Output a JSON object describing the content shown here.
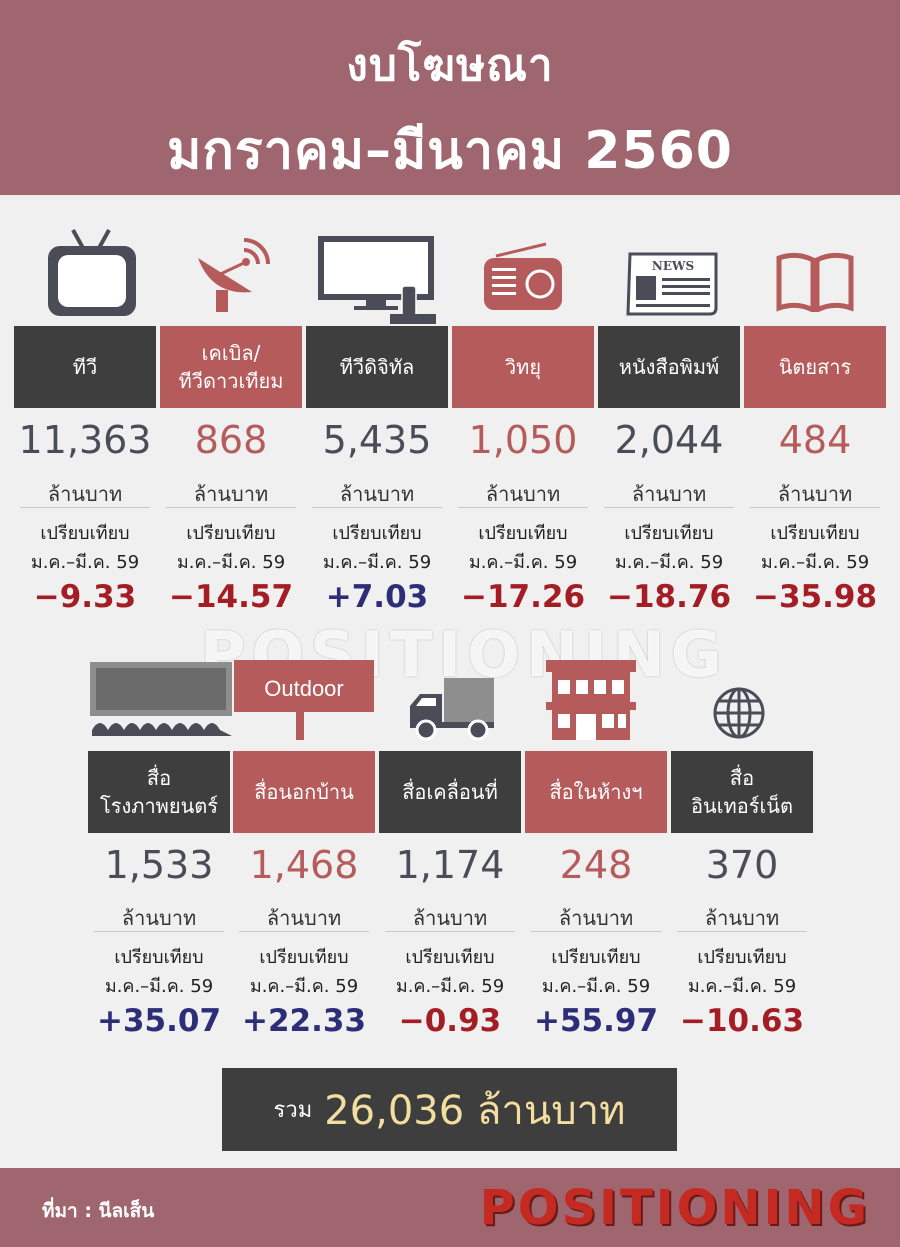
{
  "header": {
    "title_line1": "งบโฆษณา",
    "title_line2": "มกราคม–มีนาคม 2560"
  },
  "common": {
    "unit": "ล้านบาท",
    "compare_line1": "เปรียบเทียบ",
    "compare_line2": "ม.ค.–มี.ค. 59"
  },
  "row1": [
    {
      "label": "ทีวี",
      "value": "11,363",
      "change": "−9.33",
      "icon": "tv-icon"
    },
    {
      "label": "เคเบิล/\nทีวีดาวเทียม",
      "value": "868",
      "change": "−14.57",
      "icon": "satellite-dish-icon"
    },
    {
      "label": "ทีวีดิจิทัล",
      "value": "5,435",
      "change": "+7.03",
      "icon": "digital-tv-icon"
    },
    {
      "label": "วิทยุ",
      "value": "1,050",
      "change": "−17.26",
      "icon": "radio-icon"
    },
    {
      "label": "หนังสือพิมพ์",
      "value": "2,044",
      "change": "−18.76",
      "icon": "newspaper-icon"
    },
    {
      "label": "นิตยสาร",
      "value": "484",
      "change": "−35.98",
      "icon": "book-icon"
    }
  ],
  "row2": [
    {
      "label": "สื่อ\nโรงภาพยนตร์",
      "value": "1,533",
      "change": "+35.07",
      "icon": "cinema-icon"
    },
    {
      "label": "สื่อนอกบ้าน",
      "value": "1,468",
      "change": "+22.33",
      "icon": "billboard-icon"
    },
    {
      "label": "สื่อเคลื่อนที่",
      "value": "1,174",
      "change": "−0.93",
      "icon": "truck-icon"
    },
    {
      "label": "สื่อในห้างฯ",
      "value": "248",
      "change": "+55.97",
      "icon": "building-icon"
    },
    {
      "label": "สื่อ\nอินเทอร์เน็ต",
      "value": "370",
      "change": "−10.63",
      "icon": "globe-icon"
    }
  ],
  "icons": {
    "newspaper_text": "NEWS",
    "billboard_text": "Outdoor"
  },
  "watermark": "POSITIONING",
  "total": {
    "label": "รวม",
    "value": "26,036 ล้านบาท"
  },
  "footer": {
    "source": "ที่มา : นีลเส็น",
    "brand": "POSITIONING"
  },
  "colors": {
    "header_bg": "#a06670",
    "dark_box": "#3e3e3e",
    "red_box": "#b65b5c",
    "negative": "#a51d24",
    "positive": "#2c2e78",
    "total_value": "#f2dfa0"
  }
}
